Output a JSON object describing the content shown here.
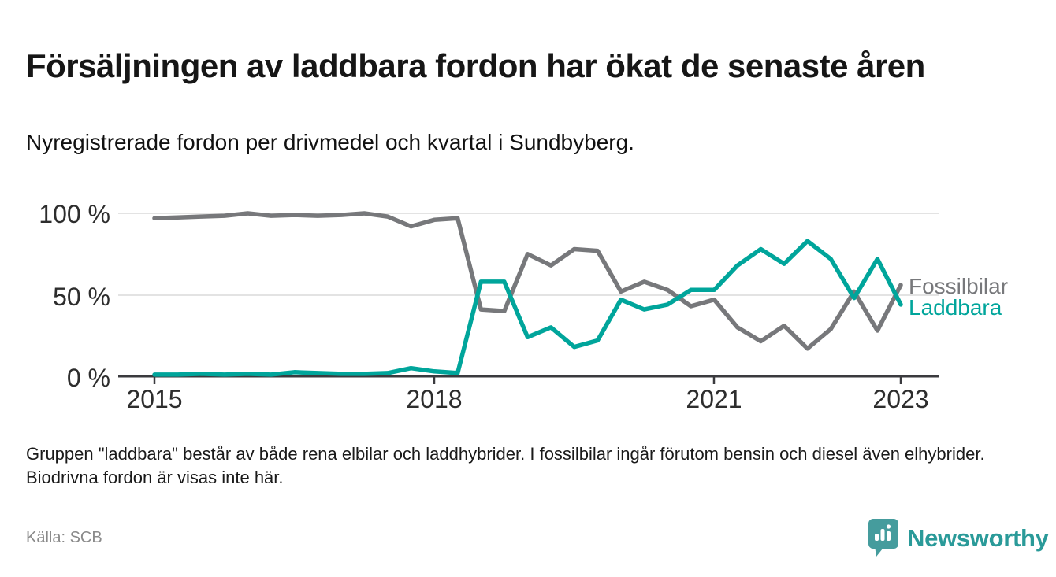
{
  "header": {
    "title": "Försäljningen av laddbara fordon har ökat de senaste åren",
    "subtitle": "Nyregistrerade fordon per drivmedel och kvartal i Sundbyberg."
  },
  "chart_data": {
    "type": "line",
    "title": "Nyregistrerade fordon per drivmedel och kvartal i Sundbyberg",
    "x_unit": "kvartal",
    "categories": [
      "2015 K1",
      "2015 K2",
      "2015 K3",
      "2015 K4",
      "2016 K1",
      "2016 K2",
      "2016 K3",
      "2016 K4",
      "2017 K1",
      "2017 K2",
      "2017 K3",
      "2017 K4",
      "2018 K1",
      "2018 K2",
      "2018 K3",
      "2018 K4",
      "2019 K1",
      "2019 K2",
      "2019 K3",
      "2019 K4",
      "2020 K1",
      "2020 K2",
      "2020 K3",
      "2020 K4",
      "2021 K1",
      "2021 K2",
      "2021 K3",
      "2021 K4",
      "2022 K1",
      "2022 K2",
      "2022 K3",
      "2022 K4",
      "2023 K1"
    ],
    "series": [
      {
        "name": "Fossilbilar",
        "color": "#77787b",
        "values": [
          97,
          97.5,
          98,
          98.5,
          100,
          98.5,
          99,
          98.5,
          99,
          100,
          98,
          92,
          96,
          97,
          41,
          40,
          75,
          68,
          78,
          77,
          52,
          58,
          53,
          43,
          47,
          30,
          21.5,
          31,
          17,
          29,
          52,
          28,
          56
        ]
      },
      {
        "name": "Laddbara",
        "color": "#00a59b",
        "values": [
          1,
          1,
          1.5,
          1,
          1.5,
          1,
          2.5,
          2,
          1.5,
          1.5,
          2,
          5,
          3,
          2,
          58,
          58,
          24,
          30,
          18,
          22,
          47,
          41,
          44,
          53,
          53,
          68,
          78,
          69,
          83,
          72,
          48,
          72,
          44
        ]
      }
    ],
    "ylim": [
      0,
      100
    ],
    "grid": "horizontal",
    "legend_position": "right-line-end",
    "y_ticks": [
      {
        "label": "0 %",
        "value": 0
      },
      {
        "label": "50 %",
        "value": 50
      },
      {
        "label": "100 %",
        "value": 100
      }
    ],
    "x_ticks": [
      {
        "label": "2015",
        "index": 0
      },
      {
        "label": "2018",
        "index": 12
      },
      {
        "label": "2021",
        "index": 24
      },
      {
        "label": "2023",
        "index": 32
      }
    ]
  },
  "footer": {
    "note": "Gruppen \"laddbara\" består av både rena elbilar och laddhybrider. I fossilbilar ingår förutom bensin och diesel även elhybrider. Biodrivna fordon är visas inte här.",
    "source": "Källa: SCB",
    "brand": "Newsworthy",
    "brand_color": "#2a9a99"
  }
}
